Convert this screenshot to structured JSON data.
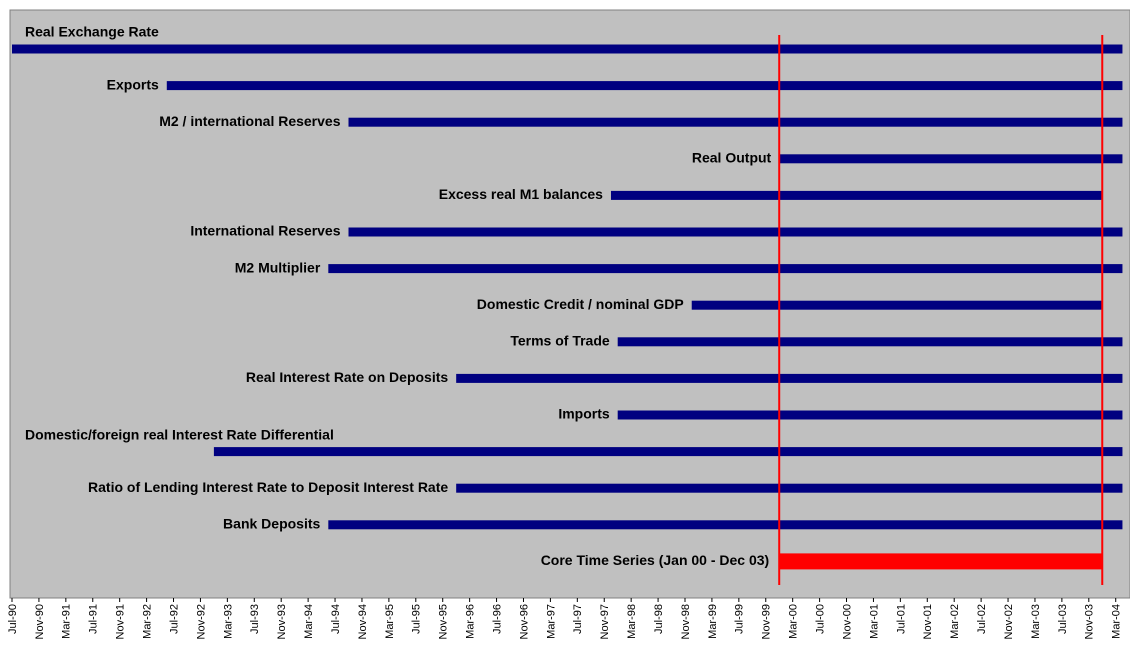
{
  "chart_data": {
    "type": "gantt",
    "title": "Real Exchange Rate",
    "x": [
      "Jul-90",
      "Nov-90",
      "Mar-91",
      "Jul-91",
      "Nov-91",
      "Mar-92",
      "Jul-92",
      "Nov-92",
      "Mar-93",
      "Jul-93",
      "Nov-93",
      "Mar-94",
      "Jul-94",
      "Nov-94",
      "Mar-95",
      "Jul-95",
      "Nov-95",
      "Mar-96",
      "Jul-96",
      "Nov-96",
      "Mar-97",
      "Jul-97",
      "Nov-97",
      "Mar-98",
      "Jul-98",
      "Nov-98",
      "Mar-99",
      "Jul-99",
      "Nov-99",
      "Mar-00",
      "Jul-00",
      "Nov-00",
      "Mar-01",
      "Jul-01",
      "Nov-01",
      "Mar-02",
      "Jul-02",
      "Nov-02",
      "Mar-03",
      "Jul-03",
      "Nov-03",
      "Mar-04"
    ],
    "color": "#000080",
    "tasks": [
      {
        "name": "Real Exchange Rate",
        "start": "Jul-90",
        "end": "Mar-04"
      },
      {
        "name": "Exports",
        "start": "Jun-92",
        "end": "Mar-04"
      },
      {
        "name": "M2 / international Reserves",
        "start": "Sep-94",
        "end": "Mar-04"
      },
      {
        "name": "Real Output",
        "start": "Jan-00",
        "end": "Mar-04"
      },
      {
        "name": "Excess real M1 balances",
        "start": "Dec-97",
        "end": "Dec-03"
      },
      {
        "name": "International Reserves",
        "start": "Sep-94",
        "end": "Mar-04"
      },
      {
        "name": "M2 Multiplier",
        "start": "Jun-94",
        "end": "Mar-04"
      },
      {
        "name": "Domestic Credit / nominal GDP",
        "start": "Dec-98",
        "end": "Dec-03"
      },
      {
        "name": "Terms of Trade",
        "start": "Jan-98",
        "end": "Mar-04"
      },
      {
        "name": "Real Interest Rate on Deposits",
        "start": "Jan-96",
        "end": "Mar-04"
      },
      {
        "name": "Imports",
        "start": "Jan-98",
        "end": "Mar-04"
      },
      {
        "name": "Domestic/foreign real Interest Rate Differential",
        "start": "Jan-93",
        "end": "Mar-04"
      },
      {
        "name": "Ratio of Lending Interest Rate to Deposit Interest Rate",
        "start": "Jan-96",
        "end": "Mar-04"
      },
      {
        "name": "Bank Deposits",
        "start": "Jun-94",
        "end": "Mar-04"
      }
    ],
    "highlight": {
      "name": "Core Time Series (Jan 00 - Dec 03)",
      "start": "Jan-00",
      "end": "Dec-03",
      "color": "#ff0000"
    }
  }
}
